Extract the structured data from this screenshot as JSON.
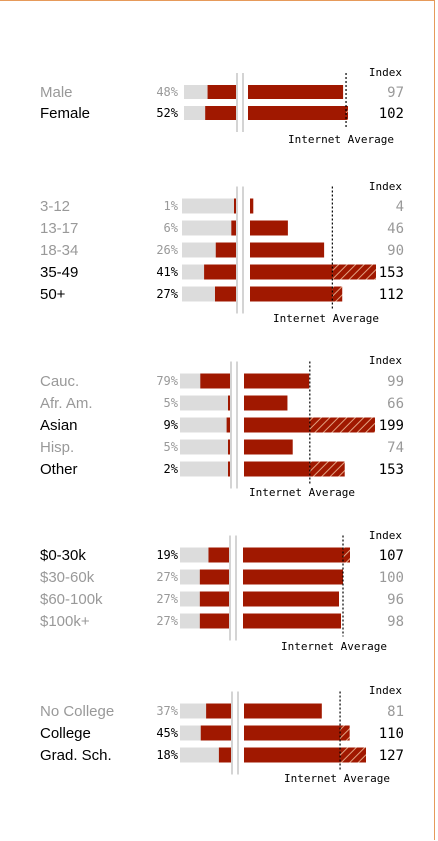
{
  "colors": {
    "bar": "#a01800",
    "track": "#dcdcdc",
    "highlight": "#000000",
    "muted": "#999999",
    "frame": "#e69a5a"
  },
  "chart_data": [
    {
      "type": "bar",
      "index_header": "Index",
      "average_label": "Internet Average",
      "average_index": 100,
      "categories": [
        "Male",
        "Female"
      ],
      "composition_pct": [
        48,
        52
      ],
      "composition_labels": [
        "48%",
        "52%"
      ],
      "index": [
        97,
        102
      ],
      "highlighted": [
        false,
        true
      ]
    },
    {
      "type": "bar",
      "index_header": "Index",
      "average_label": "Internet Average",
      "average_index": 100,
      "categories": [
        "3-12",
        "13-17",
        "18-34",
        "35-49",
        "50+"
      ],
      "composition_pct": [
        1,
        6,
        26,
        41,
        27
      ],
      "composition_labels": [
        "1%",
        "6%",
        "26%",
        "41%",
        "27%"
      ],
      "index": [
        4,
        46,
        90,
        153,
        112
      ],
      "highlighted": [
        false,
        false,
        false,
        true,
        true
      ]
    },
    {
      "type": "bar",
      "index_header": "Index",
      "average_label": "Internet Average",
      "average_index": 100,
      "categories": [
        "Cauc.",
        "Afr. Am.",
        "Asian",
        "Hisp.",
        "Other"
      ],
      "composition_pct": [
        79,
        5,
        9,
        5,
        2
      ],
      "composition_labels": [
        "79%",
        "5%",
        "9%",
        "5%",
        "2%"
      ],
      "index": [
        99,
        66,
        199,
        74,
        153
      ],
      "highlighted": [
        false,
        false,
        true,
        false,
        true
      ]
    },
    {
      "type": "bar",
      "index_header": "Index",
      "average_label": "Internet Average",
      "average_index": 100,
      "categories": [
        "$0-30k",
        "$30-60k",
        "$60-100k",
        "$100k+"
      ],
      "composition_pct": [
        19,
        27,
        27,
        27
      ],
      "composition_labels": [
        "19%",
        "27%",
        "27%",
        "27%"
      ],
      "index": [
        107,
        100,
        96,
        98
      ],
      "highlighted": [
        true,
        false,
        false,
        false
      ]
    },
    {
      "type": "bar",
      "index_header": "Index",
      "average_label": "Internet Average",
      "average_index": 100,
      "categories": [
        "No College",
        "College",
        "Grad. Sch."
      ],
      "composition_pct": [
        37,
        45,
        18
      ],
      "composition_labels": [
        "37%",
        "45%",
        "18%"
      ],
      "index": [
        81,
        110,
        127
      ],
      "highlighted": [
        false,
        true,
        true
      ]
    }
  ]
}
